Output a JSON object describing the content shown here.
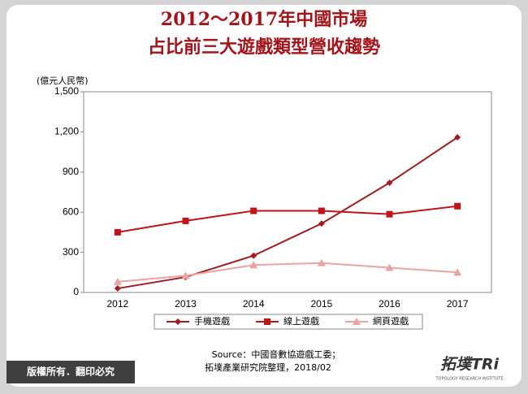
{
  "chart_data": {
    "type": "line",
    "title": "2012～2017年中國市場",
    "subtitle": "占比前三大遊戲類型營收趨勢",
    "y_label": "(億元人民幣)",
    "categories": [
      "2012",
      "2013",
      "2014",
      "2015",
      "2016",
      "2017"
    ],
    "series": [
      {
        "name": "手機遊戲",
        "color": "#a11d22",
        "marker": "diamond",
        "values": [
          30,
          115,
          275,
          515,
          820,
          1160
        ]
      },
      {
        "name": "線上遊戲",
        "color": "#c0141b",
        "marker": "square",
        "values": [
          450,
          535,
          610,
          610,
          585,
          645
        ]
      },
      {
        "name": "網頁遊戲",
        "color": "#e9a3a3",
        "marker": "triangle",
        "values": [
          80,
          125,
          205,
          220,
          185,
          150
        ]
      }
    ],
    "ylim": [
      0,
      1500
    ],
    "yticks": [
      0,
      300,
      600,
      900,
      {
        "value": 1200,
        "label": "1,200"
      },
      {
        "value": 1500,
        "label": "1,500"
      }
    ],
    "grid": false,
    "legend": "bottom"
  },
  "source": [
    "Source：中國音數協遊戲工委；",
    "拓墣產業研究院整理，2018/02"
  ],
  "footer": {
    "copyright": "版權所有．翻印必究",
    "logo": "拓墣TRi",
    "logo_sub": "TOPOLOGY RESEARCH INSTITUTE"
  }
}
